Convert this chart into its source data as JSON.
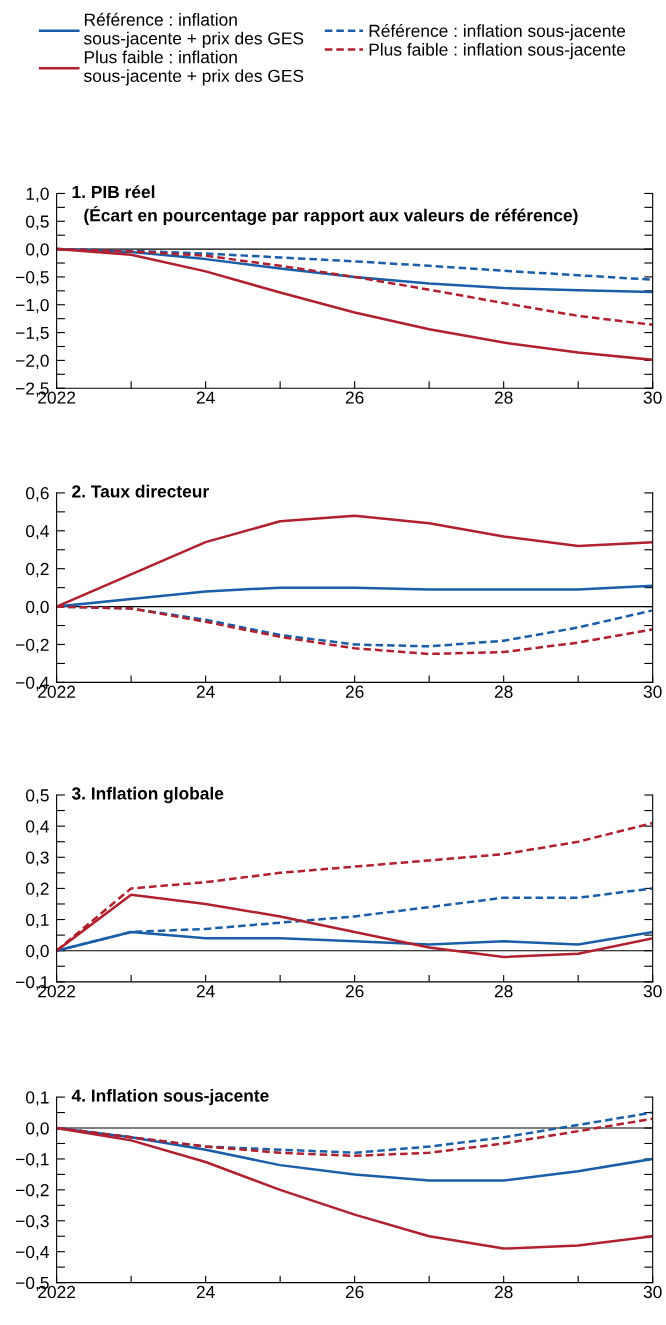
{
  "chart_data": [
    {
      "type": "line",
      "title": "1. PIB réel",
      "subtitle": "(Écart en pourcentage par rapport aux valeurs de référence)",
      "legend": "top",
      "x": [
        2022,
        2023,
        2024,
        2025,
        2026,
        2027,
        2028,
        2029,
        2030
      ],
      "xlim": [
        2022,
        2030
      ],
      "xticks": [
        {
          "value": 2022,
          "label": "2022"
        },
        {
          "value": 2023,
          "label": null
        },
        {
          "value": 2024,
          "label": "24"
        },
        {
          "value": 2025,
          "label": null
        },
        {
          "value": 2026,
          "label": "26"
        },
        {
          "value": 2027,
          "label": null
        },
        {
          "value": 2028,
          "label": "28"
        },
        {
          "value": 2029,
          "label": null
        },
        {
          "value": 2030,
          "label": "30"
        }
      ],
      "ylim": [
        -2.5,
        1.0
      ],
      "yticks": [
        {
          "value": -2.5,
          "label": "−2,5"
        },
        {
          "value": -2.25,
          "label": null
        },
        {
          "value": -2.0,
          "label": "−2,0"
        },
        {
          "value": -1.75,
          "label": null
        },
        {
          "value": -1.5,
          "label": "−1,5"
        },
        {
          "value": -1.25,
          "label": null
        },
        {
          "value": -1.0,
          "label": "−1,0"
        },
        {
          "value": -0.75,
          "label": null
        },
        {
          "value": -0.5,
          "label": "−0,5"
        },
        {
          "value": -0.25,
          "label": null
        },
        {
          "value": 0.0,
          "label": "0,0"
        },
        {
          "value": 0.25,
          "label": null
        },
        {
          "value": 0.5,
          "label": "0,5"
        },
        {
          "value": 0.75,
          "label": null
        },
        {
          "value": 1.0,
          "label": "1,0"
        }
      ],
      "ref_lines": [
        {
          "axis": "y",
          "value": 0,
          "color": "#000000"
        }
      ],
      "series": [
        {
          "name": "Référence : inflation\nsous-jacente + prix des GES",
          "color": "#1a5ea8",
          "line_style": "solid",
          "values": [
            0,
            -0.05,
            -0.18,
            -0.35,
            -0.5,
            -0.62,
            -0.7,
            -0.74,
            -0.77
          ]
        },
        {
          "name": "Référence : inflation sous-jacente",
          "color": "#1a5ea8",
          "line_style": "dashed",
          "values": [
            0,
            -0.03,
            -0.08,
            -0.15,
            -0.22,
            -0.3,
            -0.39,
            -0.47,
            -0.55
          ]
        },
        {
          "name": "Plus faible : inflation\nsous-jacente + prix des GES",
          "color": "#b0202e",
          "line_style": "solid",
          "values": [
            0,
            -0.1,
            -0.4,
            -0.78,
            -1.14,
            -1.44,
            -1.68,
            -1.86,
            -1.99
          ]
        },
        {
          "name": "Plus faible : inflation sous-jacente",
          "color": "#b0202e",
          "line_style": "dashed",
          "values": [
            0,
            -0.04,
            -0.12,
            -0.3,
            -0.5,
            -0.73,
            -0.97,
            -1.2,
            -1.36
          ]
        }
      ]
    },
    {
      "type": "line",
      "title": "2. Taux directeur",
      "x": [
        2022,
        2023,
        2024,
        2025,
        2026,
        2027,
        2028,
        2029,
        2030
      ],
      "xlim": [
        2022,
        2030
      ],
      "xticks": [
        {
          "value": 2022,
          "label": "2022"
        },
        {
          "value": 2023,
          "label": null
        },
        {
          "value": 2024,
          "label": "24"
        },
        {
          "value": 2025,
          "label": null
        },
        {
          "value": 2026,
          "label": "26"
        },
        {
          "value": 2027,
          "label": null
        },
        {
          "value": 2028,
          "label": "28"
        },
        {
          "value": 2029,
          "label": null
        },
        {
          "value": 2030,
          "label": "30"
        }
      ],
      "ylim": [
        -0.4,
        0.6
      ],
      "yticks": [
        {
          "value": -0.4,
          "label": "−0,4"
        },
        {
          "value": -0.3,
          "label": null
        },
        {
          "value": -0.2,
          "label": "−0,2"
        },
        {
          "value": -0.1,
          "label": null
        },
        {
          "value": 0.0,
          "label": "0,0"
        },
        {
          "value": 0.1,
          "label": null
        },
        {
          "value": 0.2,
          "label": "0,2"
        },
        {
          "value": 0.3,
          "label": null
        },
        {
          "value": 0.4,
          "label": "0,4"
        },
        {
          "value": 0.5,
          "label": null
        },
        {
          "value": 0.6,
          "label": "0,6"
        }
      ],
      "ref_lines": [
        {
          "axis": "y",
          "value": 0,
          "color": "#000000"
        }
      ],
      "series": [
        {
          "color": "#1a5ea8",
          "line_style": "solid",
          "values": [
            0,
            0.04,
            0.08,
            0.1,
            0.1,
            0.09,
            0.09,
            0.09,
            0.11
          ]
        },
        {
          "color": "#1a5ea8",
          "line_style": "dashed",
          "values": [
            0,
            -0.01,
            -0.07,
            -0.15,
            -0.2,
            -0.21,
            -0.18,
            -0.11,
            -0.02
          ]
        },
        {
          "color": "#b0202e",
          "line_style": "solid",
          "values": [
            0,
            0.17,
            0.34,
            0.45,
            0.48,
            0.44,
            0.37,
            0.32,
            0.34
          ]
        },
        {
          "color": "#b0202e",
          "line_style": "dashed",
          "values": [
            0,
            -0.01,
            -0.08,
            -0.16,
            -0.22,
            -0.25,
            -0.24,
            -0.19,
            -0.12
          ]
        }
      ]
    },
    {
      "type": "line",
      "title": "3. Inflation globale",
      "x": [
        2022,
        2023,
        2024,
        2025,
        2026,
        2027,
        2028,
        2029,
        2030
      ],
      "xlim": [
        2022,
        2030
      ],
      "xticks": [
        {
          "value": 2022,
          "label": "2022"
        },
        {
          "value": 2023,
          "label": null
        },
        {
          "value": 2024,
          "label": "24"
        },
        {
          "value": 2025,
          "label": null
        },
        {
          "value": 2026,
          "label": "26"
        },
        {
          "value": 2027,
          "label": null
        },
        {
          "value": 2028,
          "label": "28"
        },
        {
          "value": 2029,
          "label": null
        },
        {
          "value": 2030,
          "label": "30"
        }
      ],
      "ylim": [
        -0.1,
        0.5
      ],
      "yticks": [
        {
          "value": -0.1,
          "label": "−0,1"
        },
        {
          "value": -0.05,
          "label": null
        },
        {
          "value": 0.0,
          "label": "0,0"
        },
        {
          "value": 0.05,
          "label": null
        },
        {
          "value": 0.1,
          "label": "0,1"
        },
        {
          "value": 0.15,
          "label": null
        },
        {
          "value": 0.2,
          "label": "0,2"
        },
        {
          "value": 0.25,
          "label": null
        },
        {
          "value": 0.3,
          "label": "0,3"
        },
        {
          "value": 0.35,
          "label": null
        },
        {
          "value": 0.4,
          "label": "0,4"
        },
        {
          "value": 0.45,
          "label": null
        },
        {
          "value": 0.5,
          "label": "0,5"
        }
      ],
      "ref_lines": [
        {
          "axis": "y",
          "value": 0,
          "color": "#000000"
        }
      ],
      "series": [
        {
          "color": "#1a5ea8",
          "line_style": "solid",
          "values": [
            0,
            0.06,
            0.04,
            0.04,
            0.03,
            0.02,
            0.03,
            0.02,
            0.06
          ]
        },
        {
          "color": "#1a5ea8",
          "line_style": "dashed",
          "values": [
            0,
            0.06,
            0.07,
            0.09,
            0.11,
            0.14,
            0.17,
            0.17,
            0.2
          ]
        },
        {
          "color": "#b0202e",
          "line_style": "solid",
          "values": [
            0,
            0.18,
            0.15,
            0.11,
            0.06,
            0.01,
            -0.02,
            -0.01,
            0.04
          ]
        },
        {
          "color": "#b0202e",
          "line_style": "dashed",
          "values": [
            0,
            0.2,
            0.22,
            0.25,
            0.27,
            0.29,
            0.31,
            0.35,
            0.41
          ]
        }
      ]
    },
    {
      "type": "line",
      "title": "4. Inflation sous-jacente",
      "x": [
        2022,
        2023,
        2024,
        2025,
        2026,
        2027,
        2028,
        2029,
        2030
      ],
      "xlim": [
        2022,
        2030
      ],
      "xticks": [
        {
          "value": 2022,
          "label": "2022"
        },
        {
          "value": 2023,
          "label": null
        },
        {
          "value": 2024,
          "label": "24"
        },
        {
          "value": 2025,
          "label": null
        },
        {
          "value": 2026,
          "label": "26"
        },
        {
          "value": 2027,
          "label": null
        },
        {
          "value": 2028,
          "label": "28"
        },
        {
          "value": 2029,
          "label": null
        },
        {
          "value": 2030,
          "label": "30"
        }
      ],
      "ylim": [
        -0.5,
        0.1
      ],
      "yticks": [
        {
          "value": -0.5,
          "label": "−0,5"
        },
        {
          "value": -0.45,
          "label": null
        },
        {
          "value": -0.4,
          "label": "−0,4"
        },
        {
          "value": -0.35,
          "label": null
        },
        {
          "value": -0.3,
          "label": "−0,3"
        },
        {
          "value": -0.25,
          "label": null
        },
        {
          "value": -0.2,
          "label": "−0,2"
        },
        {
          "value": -0.15,
          "label": null
        },
        {
          "value": -0.1,
          "label": "−0,1"
        },
        {
          "value": -0.05,
          "label": null
        },
        {
          "value": 0.0,
          "label": "0,0"
        },
        {
          "value": 0.05,
          "label": null
        },
        {
          "value": 0.1,
          "label": "0,1"
        }
      ],
      "ref_lines": [
        {
          "axis": "y",
          "value": 0,
          "color": "#000000"
        }
      ],
      "series": [
        {
          "color": "#1a5ea8",
          "line_style": "solid",
          "values": [
            0,
            -0.03,
            -0.07,
            -0.12,
            -0.15,
            -0.17,
            -0.17,
            -0.14,
            -0.1
          ]
        },
        {
          "color": "#1a5ea8",
          "line_style": "dashed",
          "values": [
            0,
            -0.03,
            -0.06,
            -0.07,
            -0.08,
            -0.06,
            -0.03,
            0.01,
            0.05
          ]
        },
        {
          "color": "#b0202e",
          "line_style": "solid",
          "values": [
            0,
            -0.04,
            -0.11,
            -0.2,
            -0.28,
            -0.35,
            -0.39,
            -0.38,
            -0.35
          ]
        },
        {
          "color": "#b0202e",
          "line_style": "dashed",
          "values": [
            0,
            -0.03,
            -0.06,
            -0.08,
            -0.09,
            -0.08,
            -0.05,
            -0.01,
            0.03
          ]
        }
      ]
    }
  ]
}
